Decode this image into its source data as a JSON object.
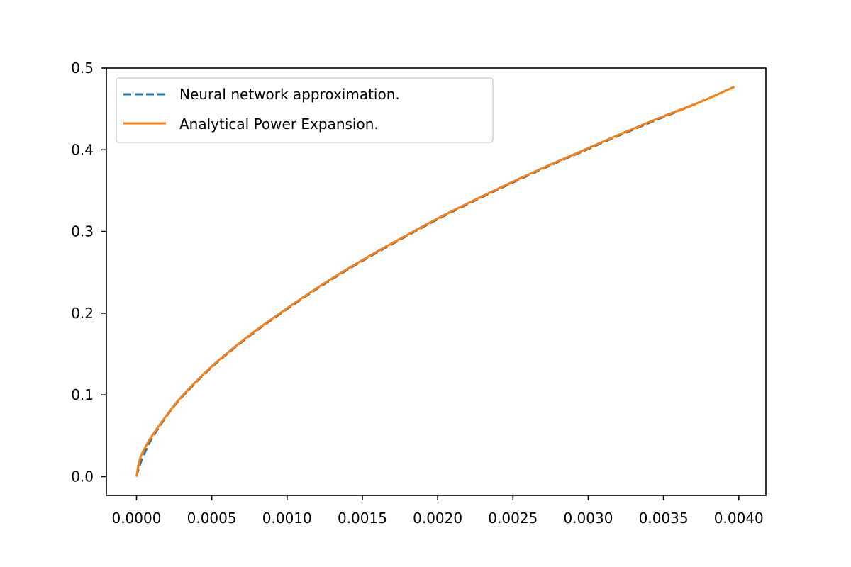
{
  "chart_data": {
    "type": "line",
    "title": "",
    "xlabel": "",
    "ylabel": "",
    "xlim": [
      -0.0002,
      0.00418
    ],
    "ylim": [
      -0.023,
      0.5
    ],
    "x_ticks": [
      0.0,
      0.0005,
      0.001,
      0.0015,
      0.002,
      0.0025,
      0.003,
      0.0035,
      0.004
    ],
    "x_tick_labels": [
      "0.0000",
      "0.0005",
      "0.0010",
      "0.0015",
      "0.0020",
      "0.0025",
      "0.0030",
      "0.0035",
      "0.0040"
    ],
    "y_ticks": [
      0.0,
      0.1,
      0.2,
      0.3,
      0.4,
      0.5
    ],
    "y_tick_labels": [
      "0.0",
      "0.1",
      "0.2",
      "0.3",
      "0.4",
      "0.5"
    ],
    "grid": false,
    "legend_position": "top-left",
    "series": [
      {
        "name": "Neural network approximation.",
        "color": "#1f77b4",
        "style": "dashed",
        "x": [
          0.0,
          2e-05,
          5e-05,
          0.0001,
          0.0002,
          0.0003,
          0.0005,
          0.00075,
          0.001,
          0.00125,
          0.0015,
          0.00175,
          0.002,
          0.00225,
          0.0025,
          0.00275,
          0.003,
          0.00325,
          0.0035,
          0.00375,
          0.00397
        ],
        "y": [
          0.0,
          0.013,
          0.027,
          0.046,
          0.074,
          0.097,
          0.134,
          0.172,
          0.205,
          0.236,
          0.264,
          0.29,
          0.315,
          0.338,
          0.36,
          0.381,
          0.401,
          0.421,
          0.44,
          0.459,
          0.477
        ]
      },
      {
        "name": "Analytical Power Expansion.",
        "color": "#ff7f0e",
        "style": "solid",
        "x": [
          0.0,
          2e-05,
          5e-05,
          0.0001,
          0.0002,
          0.0003,
          0.0005,
          0.00075,
          0.001,
          0.00125,
          0.0015,
          0.00175,
          0.002,
          0.00225,
          0.0025,
          0.00275,
          0.003,
          0.00325,
          0.0035,
          0.00375,
          0.00397
        ],
        "y": [
          0.0,
          0.02,
          0.033,
          0.049,
          0.075,
          0.098,
          0.135,
          0.173,
          0.206,
          0.237,
          0.265,
          0.291,
          0.316,
          0.339,
          0.361,
          0.382,
          0.402,
          0.422,
          0.441,
          0.459,
          0.477
        ]
      }
    ]
  }
}
